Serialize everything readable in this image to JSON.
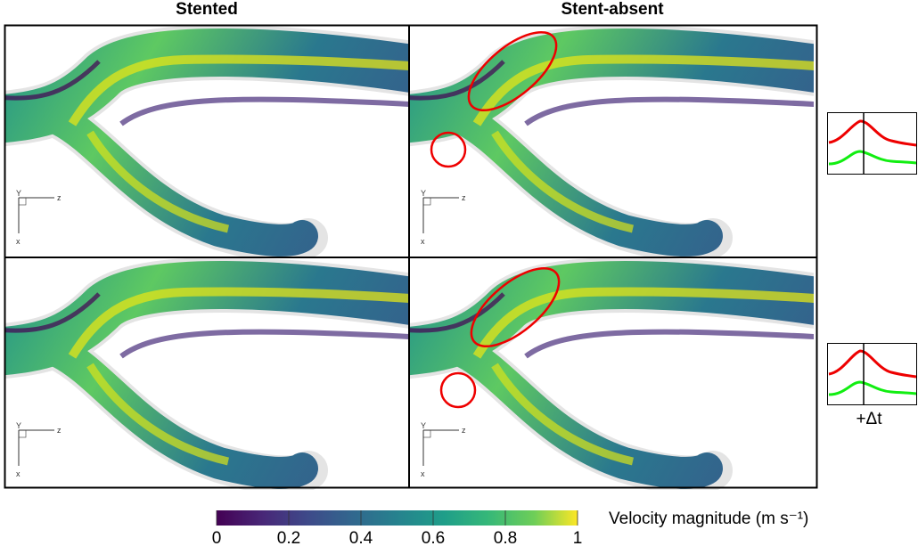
{
  "header": {
    "left_title": "Stented",
    "right_title": "Stent-absent"
  },
  "triad": {
    "y": "Y",
    "z": "z",
    "x": "x"
  },
  "inset_label": "+Δt",
  "colorbar": {
    "label": "Velocity magnitude (m s⁻¹)",
    "lim": [
      0,
      1
    ],
    "ticks": [
      0,
      0.2,
      0.4,
      0.6,
      0.8,
      1
    ]
  }
}
